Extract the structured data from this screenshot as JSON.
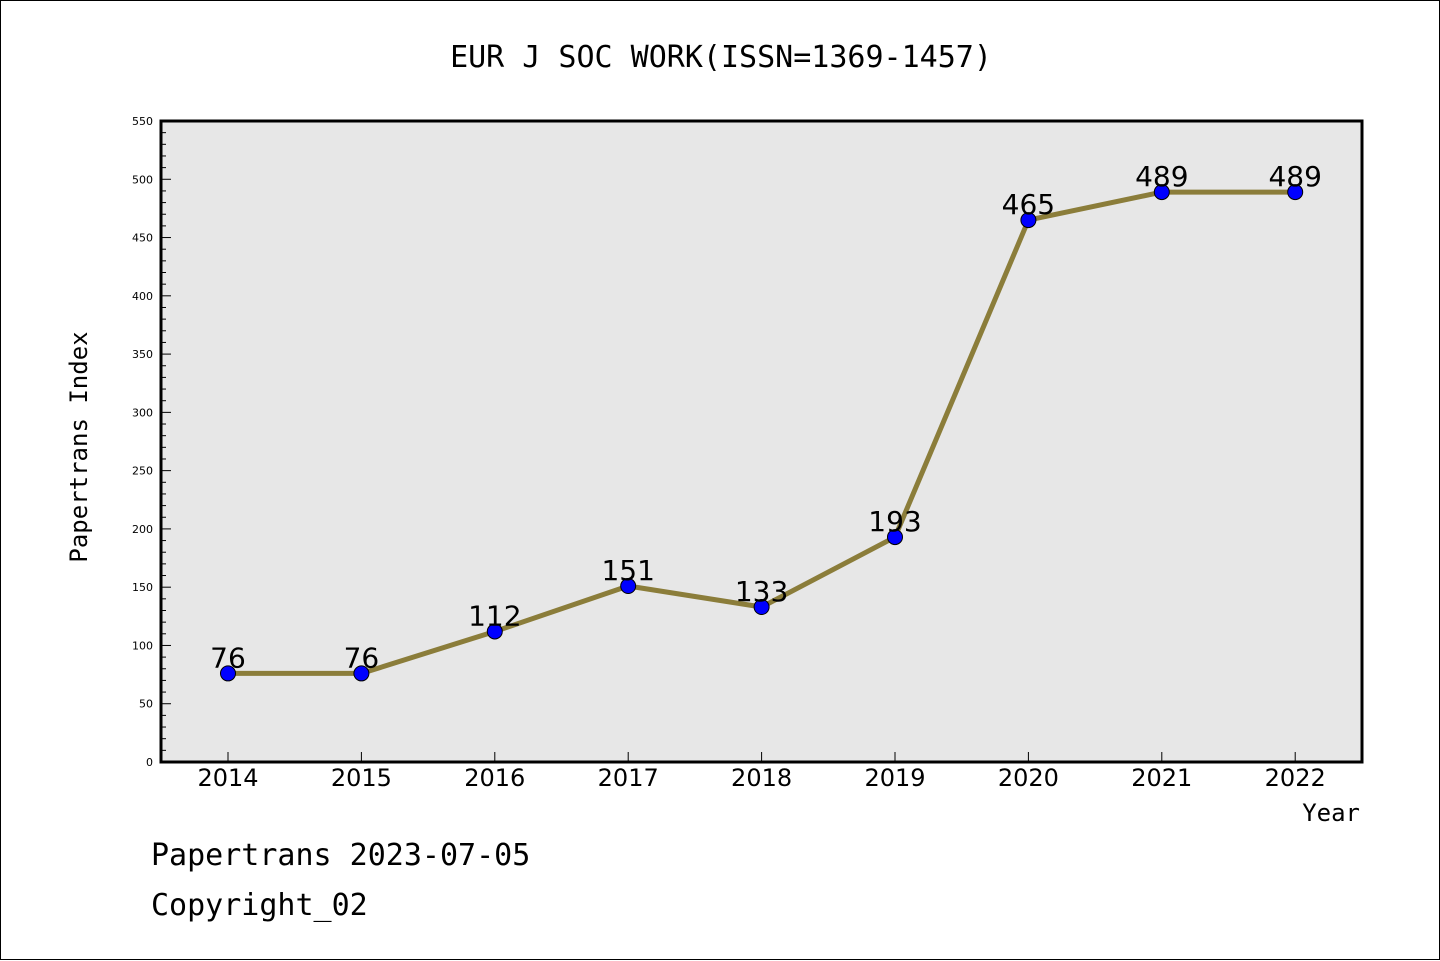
{
  "chart_data": {
    "type": "line",
    "title": "EUR J SOC WORK(ISSN=1369-1457)",
    "xlabel": "Year",
    "ylabel": "Papertrans Index",
    "categories": [
      "2014",
      "2015",
      "2016",
      "2017",
      "2018",
      "2019",
      "2020",
      "2021",
      "2022"
    ],
    "values": [
      76,
      76,
      112,
      151,
      133,
      193,
      465,
      489,
      489
    ],
    "data_labels": [
      "76",
      "76",
      "112",
      "151",
      "133",
      "193",
      "465",
      "489",
      "489"
    ],
    "ylim": [
      0,
      550
    ],
    "yticks": [
      0,
      50,
      100,
      150,
      200,
      250,
      300,
      350,
      400,
      450,
      500,
      550
    ],
    "ytick_labels": [
      "0",
      "50",
      "100",
      "150",
      "200",
      "250",
      "300",
      "350",
      "400",
      "450",
      "500",
      "550"
    ],
    "grid": false,
    "legend": "none",
    "colors": {
      "line": "#8b7d3a",
      "marker": "#0000ff",
      "plot_background": "#e7e7e7"
    }
  },
  "footer": {
    "line1": "Papertrans 2023-07-05",
    "line2": "Copyright_02"
  }
}
